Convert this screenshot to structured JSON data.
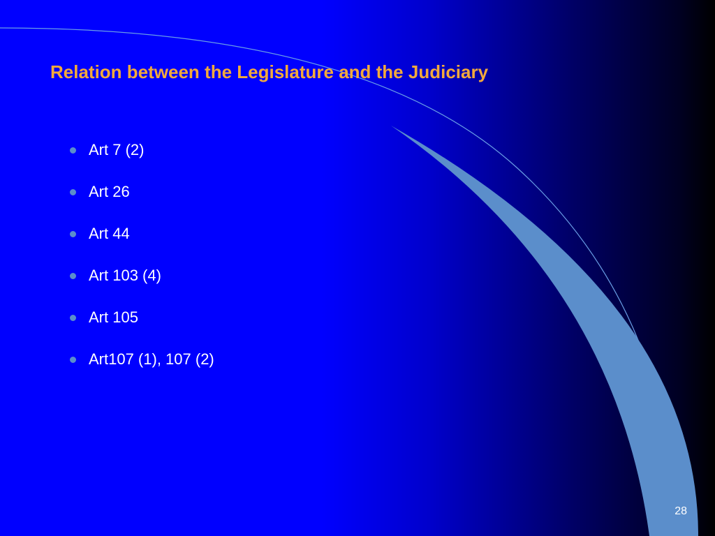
{
  "slide": {
    "title": "Relation between the Legislature and the Judiciary",
    "title_color": "#f2a93c",
    "title_fontsize": 26,
    "bullets": [
      "Art 7 (2)",
      "Art 26",
      "Art 44",
      "Art 103 (4)",
      "Art 105",
      "Art107 (1), 107 (2)"
    ],
    "bullet_text_color": "#ffffff",
    "bullet_fontsize": 22,
    "bullet_dot_color": "#5b8ecb",
    "bullet_dot_size": 9,
    "bullet_line_height": 60,
    "page_number": "28",
    "page_number_color": "#ffffff",
    "page_number_fontsize": 16,
    "background": {
      "gradient_stops": [
        "#0000ff",
        "#0000ff",
        "#0000cc",
        "#000066",
        "#000022",
        "#000000"
      ],
      "arc_thin_stroke": "#6a9fe6",
      "arc_fill_color": "#5b8ecb"
    }
  }
}
